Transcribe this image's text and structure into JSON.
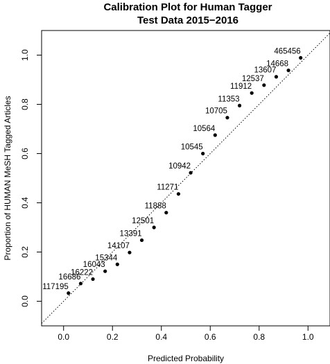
{
  "chart_data": {
    "type": "scatter",
    "title": "Calibration Plot for Human Tagger",
    "subtitle": "Test Data 2015−2016",
    "xlabel": "Predicted Probability",
    "ylabel": "Proportion of HUMAN MeSH Tagged Articles",
    "xlim": [
      -0.09,
      1.09
    ],
    "ylim": [
      -0.1,
      1.1
    ],
    "x_ticks": [
      "0.0",
      "0.2",
      "0.4",
      "0.6",
      "0.8",
      "1.0"
    ],
    "y_ticks": [
      "0.0",
      "0.2",
      "0.4",
      "0.6",
      "0.8",
      "1.0"
    ],
    "reference_line": "dotted diagonal y = x",
    "grid": false,
    "points": [
      {
        "x": 0.02,
        "y": 0.033,
        "label": "117195"
      },
      {
        "x": 0.07,
        "y": 0.072,
        "label": "16686"
      },
      {
        "x": 0.12,
        "y": 0.09,
        "label": "16222"
      },
      {
        "x": 0.17,
        "y": 0.122,
        "label": "16043"
      },
      {
        "x": 0.22,
        "y": 0.15,
        "label": "15344"
      },
      {
        "x": 0.27,
        "y": 0.198,
        "label": "14107"
      },
      {
        "x": 0.32,
        "y": 0.248,
        "label": "13391"
      },
      {
        "x": 0.37,
        "y": 0.3,
        "label": "12501"
      },
      {
        "x": 0.42,
        "y": 0.36,
        "label": "11888"
      },
      {
        "x": 0.47,
        "y": 0.436,
        "label": "11271"
      },
      {
        "x": 0.52,
        "y": 0.522,
        "label": "10942"
      },
      {
        "x": 0.57,
        "y": 0.6,
        "label": "10545"
      },
      {
        "x": 0.62,
        "y": 0.675,
        "label": "10564"
      },
      {
        "x": 0.67,
        "y": 0.746,
        "label": "10705"
      },
      {
        "x": 0.72,
        "y": 0.795,
        "label": "11353"
      },
      {
        "x": 0.77,
        "y": 0.846,
        "label": "11912"
      },
      {
        "x": 0.82,
        "y": 0.878,
        "label": "12537"
      },
      {
        "x": 0.87,
        "y": 0.912,
        "label": "13607"
      },
      {
        "x": 0.92,
        "y": 0.938,
        "label": "14668"
      },
      {
        "x": 0.97,
        "y": 0.989,
        "label": "465456"
      }
    ]
  }
}
